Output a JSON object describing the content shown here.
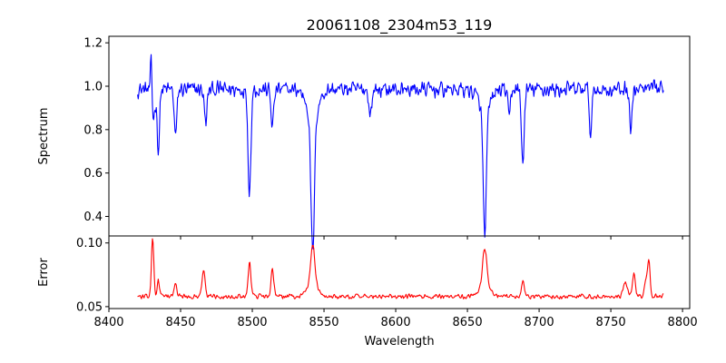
{
  "chart_data": {
    "type": "line",
    "title": "20061108_2304m53_119",
    "xlabel": "Wavelength",
    "xlim": [
      8400,
      8805
    ],
    "x_ticks": [
      8400,
      8450,
      8500,
      8550,
      8600,
      8650,
      8700,
      8750,
      8800
    ],
    "grid": false,
    "panels": [
      {
        "name": "spectrum",
        "ylabel": "Spectrum",
        "ylim": [
          0.31,
          1.23
        ],
        "y_ticks": [
          0.4,
          0.6,
          0.8,
          1.0,
          1.2
        ],
        "y_tick_labels": [
          "0.4",
          "0.6",
          "0.8",
          "1.0",
          "1.2"
        ],
        "series": [
          {
            "color": "#0000ff",
            "x_range": [
              8420,
              8787
            ],
            "baseline": 0.985,
            "noise": 0.045,
            "features": [
              {
                "x": 8429.5,
                "depth": -0.19,
                "width": 0.5
              },
              {
                "x": 8431,
                "depth": 0.13,
                "width": 1.2
              },
              {
                "x": 8434.5,
                "depth": 0.28,
                "width": 0.8
              },
              {
                "x": 8446.5,
                "depth": 0.22,
                "width": 0.9
              },
              {
                "x": 8467.5,
                "depth": 0.16,
                "width": 0.9
              },
              {
                "x": 8498.0,
                "depth": 0.47,
                "width": 1.0
              },
              {
                "x": 8514.0,
                "depth": 0.16,
                "width": 1.0
              },
              {
                "x": 8542.1,
                "depth": 0.64,
                "width": 1.2
              },
              {
                "x": 8542.1,
                "depth": 0.12,
                "width": 4.0
              },
              {
                "x": 8582.3,
                "depth": 0.12,
                "width": 1.0
              },
              {
                "x": 8662.1,
                "depth": 0.57,
                "width": 1.1
              },
              {
                "x": 8662.1,
                "depth": 0.1,
                "width": 4.0
              },
              {
                "x": 8688.6,
                "depth": 0.33,
                "width": 1.0
              },
              {
                "x": 8736.0,
                "depth": 0.22,
                "width": 0.8
              },
              {
                "x": 8764.0,
                "depth": 0.2,
                "width": 0.8
              },
              {
                "x": 8679.0,
                "depth": 0.14,
                "width": 0.8
              }
            ]
          }
        ]
      },
      {
        "name": "error",
        "ylabel": "Error",
        "ylim": [
          0.0485,
          0.1055
        ],
        "y_ticks": [
          0.05,
          0.1
        ],
        "y_tick_labels": [
          "0.05",
          "0.10"
        ],
        "series": [
          {
            "color": "#ff0000",
            "x_range": [
              8420,
              8787
            ],
            "baseline": 0.058,
            "noise": 0.0022,
            "features": [
              {
                "x": 8430.5,
                "depth": -0.046,
                "width": 0.8
              },
              {
                "x": 8434.5,
                "depth": -0.012,
                "width": 0.8
              },
              {
                "x": 8446.5,
                "depth": -0.01,
                "width": 0.9
              },
              {
                "x": 8466.0,
                "depth": -0.022,
                "width": 1.0
              },
              {
                "x": 8498.0,
                "depth": -0.026,
                "width": 1.0
              },
              {
                "x": 8514.0,
                "depth": -0.02,
                "width": 1.0
              },
              {
                "x": 8542.1,
                "depth": -0.032,
                "width": 1.5
              },
              {
                "x": 8542.1,
                "depth": -0.008,
                "width": 4.0
              },
              {
                "x": 8662.1,
                "depth": -0.03,
                "width": 1.5
              },
              {
                "x": 8662.1,
                "depth": -0.008,
                "width": 4.0
              },
              {
                "x": 8688.6,
                "depth": -0.012,
                "width": 1.0
              },
              {
                "x": 8766.0,
                "depth": -0.018,
                "width": 1.0
              },
              {
                "x": 8774.5,
                "depth": -0.012,
                "width": 0.9
              },
              {
                "x": 8776.5,
                "depth": -0.028,
                "width": 0.9
              },
              {
                "x": 8760.0,
                "depth": -0.01,
                "width": 1.5
              }
            ]
          }
        ]
      }
    ]
  }
}
